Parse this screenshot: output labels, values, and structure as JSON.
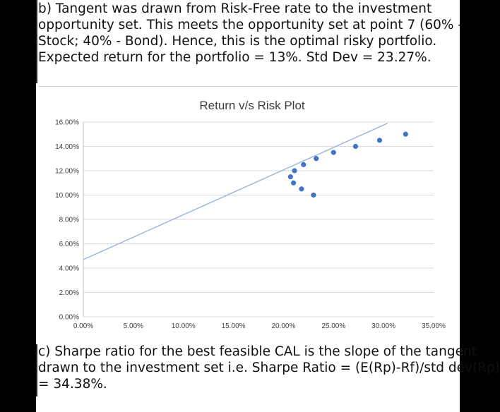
{
  "paragraph_b": {
    "lines": [
      "b) Tangent was drawn from Risk-Free rate to the investment",
      "opportunity set. This meets the opportunity set at point 7 (60% -",
      "Stock; 40% - Bond). Hence, this is the optimal risky portfolio.",
      "Expected return for the portfolio = 13%. Std Dev = 23.27%."
    ]
  },
  "paragraph_c": {
    "lines": [
      "c) Sharpe ratio for the best feasible CAL is the slope of the tangent",
      "drawn to the investment set i.e. Sharpe Ratio = (E(Rp)-Rf)/std dev(Rp)",
      "= 34.38%."
    ]
  },
  "chart_data": {
    "type": "scatter",
    "title": "Return v/s Risk Plot",
    "xlabel": "",
    "ylabel": "",
    "xlim": [
      0,
      35
    ],
    "ylim": [
      0,
      16
    ],
    "x_ticks": [
      0,
      5,
      10,
      15,
      20,
      25,
      30,
      35
    ],
    "y_ticks": [
      0,
      2,
      4,
      6,
      8,
      10,
      12,
      14,
      16
    ],
    "x_tick_labels": [
      "0.00%",
      "5.00%",
      "10.00%",
      "15.00%",
      "20.00%",
      "25.00%",
      "30.00%",
      "35.00%"
    ],
    "y_tick_labels": [
      "0.00%",
      "2.00%",
      "4.00%",
      "6.00%",
      "8.00%",
      "10.00%",
      "12.00%",
      "14.00%",
      "16.00%"
    ],
    "grid": "horizontal",
    "legend": "none",
    "series": [
      {
        "points": [
          {
            "x": 23.0,
            "y": 10.0
          },
          {
            "x": 21.8,
            "y": 10.5
          },
          {
            "x": 21.0,
            "y": 11.0
          },
          {
            "x": 20.7,
            "y": 11.5
          },
          {
            "x": 21.1,
            "y": 12.0
          },
          {
            "x": 22.0,
            "y": 12.5
          },
          {
            "x": 23.27,
            "y": 13.0
          },
          {
            "x": 25.0,
            "y": 13.5
          },
          {
            "x": 27.2,
            "y": 14.0
          },
          {
            "x": 29.6,
            "y": 14.5
          },
          {
            "x": 32.2,
            "y": 15.0
          }
        ],
        "color": "#4472C4"
      }
    ],
    "tangent_line": {
      "from": {
        "x": 0,
        "y": 4.7
      },
      "to": {
        "x": 30.4,
        "y": 15.9
      },
      "color": "#9DB8DC"
    }
  }
}
